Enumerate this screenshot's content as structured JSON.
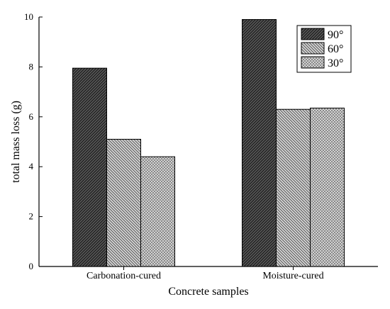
{
  "chart_data": {
    "type": "bar",
    "categories": [
      "Carbonation-cured",
      "Moisture-cured"
    ],
    "series": [
      {
        "name": "90°",
        "values": [
          7.95,
          9.9
        ],
        "pattern": "dense-diagonal",
        "color": "#333333"
      },
      {
        "name": "60°",
        "values": [
          5.1,
          6.3
        ],
        "pattern": "diagonal",
        "color": "#666666"
      },
      {
        "name": "30°",
        "values": [
          4.4,
          6.35
        ],
        "pattern": "crosshatch",
        "color": "#888888"
      }
    ],
    "xlabel": "Concrete samples",
    "ylabel": "total mass loss (g)",
    "ylim": [
      0,
      10
    ],
    "yticks": [
      0,
      2,
      4,
      6,
      8,
      10
    ],
    "grid": false,
    "legend_position": "top-right"
  }
}
